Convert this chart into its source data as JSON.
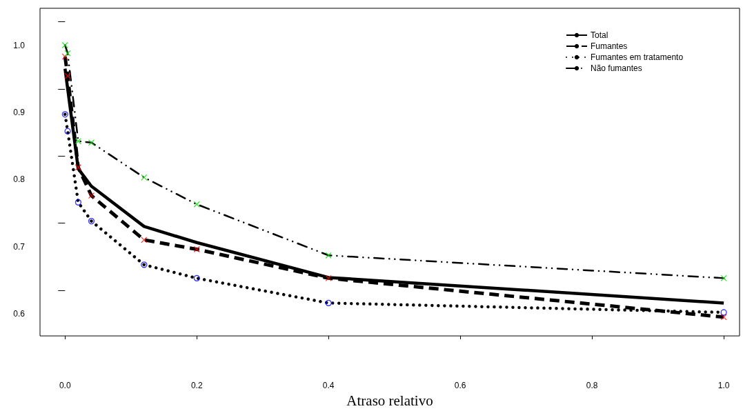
{
  "chart_data": {
    "type": "line",
    "xlabel": "Atraso relativo",
    "xlim": [
      -0.038,
      1.024
    ],
    "xticks": [
      {
        "value": 0,
        "label": "0.0"
      },
      0.2,
      0.4,
      0.6,
      0.8,
      {
        "value": 1,
        "label": "1.0"
      }
    ],
    "ylim": [
      0.567,
      1.055
    ],
    "yticks": [
      {
        "value": 0.6,
        "label": "0.6"
      },
      {
        "value": 0.7,
        "label": "0.7"
      },
      {
        "value": 0.8,
        "label": "0.8"
      },
      {
        "value": 0.9,
        "label": "0.9"
      },
      {
        "value": 1.0,
        "label": "1.0"
      },
      {
        "value": 0.635,
        "label": null
      },
      {
        "value": 0.735,
        "label": null
      },
      {
        "value": 0.835,
        "label": null
      },
      {
        "value": 0.935,
        "label": null
      },
      {
        "value": 1.035,
        "label": null
      }
    ],
    "grid": false,
    "legend": "top right",
    "marker": "none",
    "series": [
      {
        "name": "Total",
        "color": "#000000",
        "line_style": "solid",
        "x": [
          0.0,
          0.02,
          0.04,
          0.12,
          0.2,
          0.4,
          1.0
        ],
        "values": [
          0.965,
          0.816,
          0.79,
          0.73,
          0.706,
          0.654,
          0.616
        ]
      },
      {
        "name": "Fumantes",
        "color": "#000000",
        "line_style": "dashed",
        "x": [
          0.0,
          0.004,
          0.02,
          0.04,
          0.12,
          0.2,
          0.4,
          1.0
        ],
        "values": [
          0.983,
          0.954,
          0.818,
          0.776,
          0.71,
          0.696,
          0.653,
          0.595
        ]
      },
      {
        "name": "Fumantes em tratamento",
        "color": "#000000",
        "line_style": "dotted",
        "x": [
          0.0,
          0.004,
          0.02,
          0.04,
          0.12,
          0.2,
          0.4,
          1.0
        ],
        "values": [
          0.897,
          0.872,
          0.766,
          0.738,
          0.673,
          0.653,
          0.616,
          0.602
        ]
      },
      {
        "name": "Não fumantes",
        "color": "#000000",
        "line_style": "dashdot",
        "x": [
          0.0,
          0.004,
          0.02,
          0.04,
          0.12,
          0.2,
          0.4,
          1.0
        ],
        "values": [
          1.0,
          0.988,
          0.857,
          0.855,
          0.803,
          0.763,
          0.687,
          0.653
        ]
      },
      {
        "type": "scatter",
        "color": "#ff0000",
        "marker": "cross",
        "x": [
          0.0,
          0.004,
          0.02,
          0.04,
          0.12,
          0.2,
          0.4,
          1.0
        ],
        "values": [
          0.983,
          0.954,
          0.818,
          0.776,
          0.71,
          0.696,
          0.653,
          0.595
        ]
      },
      {
        "type": "scatter",
        "color": "#0000ff",
        "marker": "circle",
        "x": [
          0.0,
          0.004,
          0.02,
          0.04,
          0.12,
          0.2,
          0.4,
          1.0
        ],
        "values": [
          0.897,
          0.872,
          0.766,
          0.738,
          0.673,
          0.653,
          0.616,
          0.602
        ]
      },
      {
        "type": "scatter",
        "color": "#00dd00",
        "marker": "cross",
        "x": [
          0.0,
          0.004,
          0.02,
          0.04,
          0.12,
          0.2,
          0.4,
          1.0
        ],
        "values": [
          1.0,
          0.988,
          0.857,
          0.855,
          0.803,
          0.763,
          0.687,
          0.653
        ]
      }
    ]
  }
}
